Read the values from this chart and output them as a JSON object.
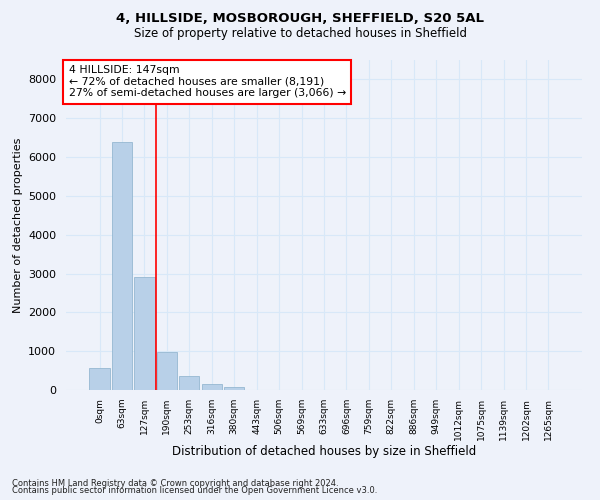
{
  "title1": "4, HILLSIDE, MOSBOROUGH, SHEFFIELD, S20 5AL",
  "title2": "Size of property relative to detached houses in Sheffield",
  "xlabel": "Distribution of detached houses by size in Sheffield",
  "ylabel": "Number of detached properties",
  "footnote1": "Contains HM Land Registry data © Crown copyright and database right 2024.",
  "footnote2": "Contains public sector information licensed under the Open Government Licence v3.0.",
  "bar_labels": [
    "0sqm",
    "63sqm",
    "127sqm",
    "190sqm",
    "253sqm",
    "316sqm",
    "380sqm",
    "443sqm",
    "506sqm",
    "569sqm",
    "633sqm",
    "696sqm",
    "759sqm",
    "822sqm",
    "886sqm",
    "949sqm",
    "1012sqm",
    "1075sqm",
    "1139sqm",
    "1202sqm",
    "1265sqm"
  ],
  "bar_values": [
    560,
    6400,
    2920,
    970,
    360,
    150,
    80,
    0,
    0,
    0,
    0,
    0,
    0,
    0,
    0,
    0,
    0,
    0,
    0,
    0,
    0
  ],
  "bar_color": "#b8d0e8",
  "bar_edge_color": "#8ab0cc",
  "grid_color": "#d8e8f8",
  "background_color": "#eef2fa",
  "vline_x": 2.5,
  "vline_color": "red",
  "annotation_text": "4 HILLSIDE: 147sqm\n← 72% of detached houses are smaller (8,191)\n27% of semi-detached houses are larger (3,066) →",
  "annotation_box_color": "white",
  "annotation_box_edge": "red",
  "ylim": [
    0,
    8500
  ],
  "yticks": [
    0,
    1000,
    2000,
    3000,
    4000,
    5000,
    6000,
    7000,
    8000
  ]
}
